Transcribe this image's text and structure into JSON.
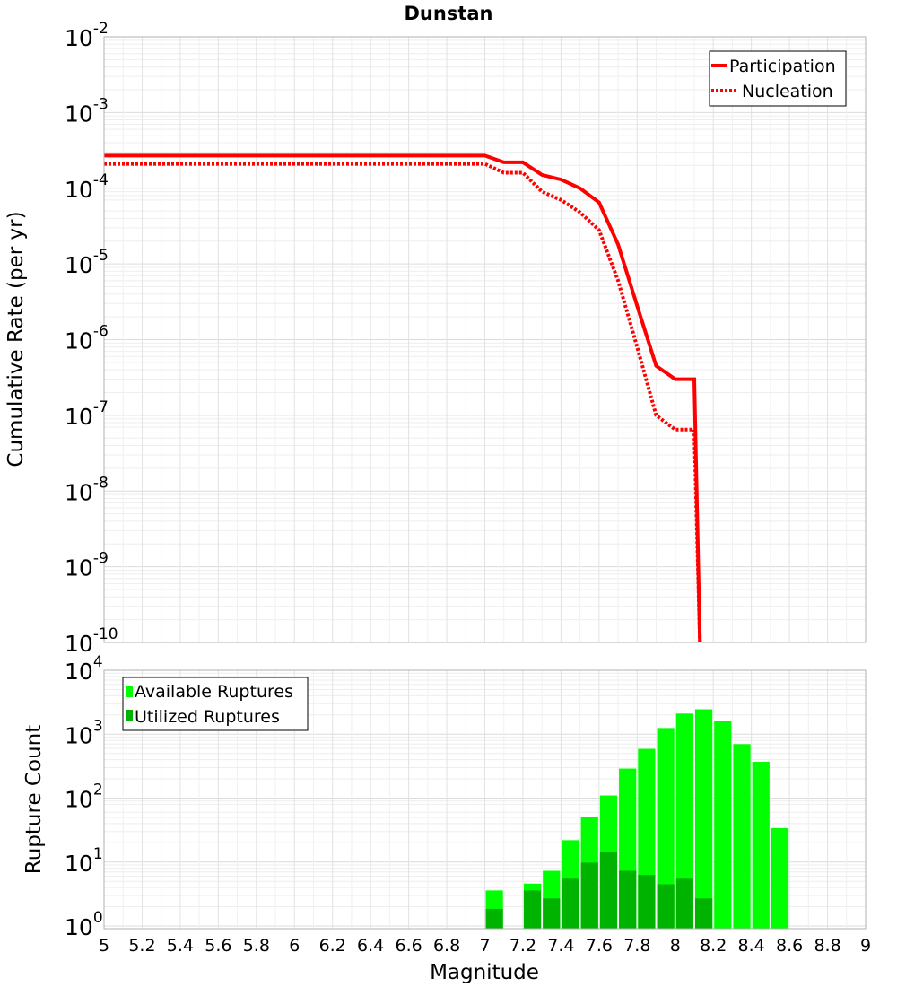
{
  "chart_data": [
    {
      "type": "line",
      "title": "Dunstan",
      "xlabel": "",
      "ylabel": "Cumulative Rate (per yr)",
      "xlim": [
        5,
        9
      ],
      "ylim_exponents": [
        -10,
        -2
      ],
      "y_tick_base": "10",
      "y_tick_exponents": [
        "-10",
        "-9",
        "-8",
        "-7",
        "-6",
        "-5",
        "-4",
        "-3",
        "-2"
      ],
      "legend": {
        "position": "top-right",
        "entries": [
          "Participation",
          "Nucleation"
        ]
      },
      "series": [
        {
          "name": "Participation",
          "style": "solid",
          "color": "#ff0000",
          "x": [
            5.0,
            7.0,
            7.1,
            7.2,
            7.3,
            7.4,
            7.5,
            7.6,
            7.7,
            7.8,
            7.9,
            8.0,
            8.1,
            8.13
          ],
          "y": [
            0.00027,
            0.00027,
            0.00022,
            0.00022,
            0.00015,
            0.00013,
            0.0001,
            6.5e-05,
            1.8e-05,
            2.8e-06,
            4.5e-07,
            3e-07,
            3e-07,
            1e-10
          ]
        },
        {
          "name": "Nucleation",
          "style": "dotted",
          "color": "#ff0000",
          "x": [
            5.0,
            7.0,
            7.1,
            7.2,
            7.3,
            7.4,
            7.5,
            7.6,
            7.7,
            7.8,
            7.9,
            8.0,
            8.1,
            8.13
          ],
          "y": [
            0.00021,
            0.00021,
            0.00016,
            0.00016,
            9e-05,
            7e-05,
            4.8e-05,
            2.8e-05,
            6e-06,
            8e-07,
            1e-07,
            6.5e-08,
            6.5e-08,
            1e-10
          ]
        }
      ]
    },
    {
      "type": "bar",
      "title": "",
      "xlabel": "Magnitude",
      "ylabel": "Rupture Count",
      "xlim": [
        5,
        9
      ],
      "x_ticks": [
        "5",
        "5.2",
        "5.4",
        "5.6",
        "5.8",
        "6",
        "6.2",
        "6.4",
        "6.6",
        "6.8",
        "7",
        "7.2",
        "7.4",
        "7.6",
        "7.8",
        "8",
        "8.2",
        "8.4",
        "8.6",
        "8.8",
        "9"
      ],
      "ylim_exponents": [
        0,
        4
      ],
      "y_tick_base": "10",
      "y_tick_exponents": [
        "0",
        "1",
        "2",
        "3",
        "4"
      ],
      "legend": {
        "position": "top-left",
        "entries": [
          "Available Ruptures",
          "Utilized Ruptures"
        ]
      },
      "bin_width": 0.1,
      "series": [
        {
          "name": "Available Ruptures",
          "color": "#00ff00",
          "x": [
            7.0,
            7.2,
            7.3,
            7.4,
            7.5,
            7.6,
            7.7,
            7.8,
            7.9,
            8.0,
            8.1,
            8.2,
            8.3,
            8.4,
            8.5
          ],
          "values": [
            3.6,
            4.6,
            7.3,
            22,
            50,
            110,
            290,
            590,
            1250,
            2100,
            2450,
            1600,
            700,
            370,
            34
          ]
        },
        {
          "name": "Utilized Ruptures",
          "color": "#00b300",
          "x": [
            7.0,
            7.2,
            7.3,
            7.4,
            7.5,
            7.6,
            7.7,
            7.8,
            7.9,
            8.0,
            8.1
          ],
          "values": [
            1.85,
            3.6,
            2.7,
            5.5,
            9.8,
            14.5,
            7.3,
            6.3,
            4.5,
            5.5,
            2.7
          ]
        }
      ]
    }
  ]
}
